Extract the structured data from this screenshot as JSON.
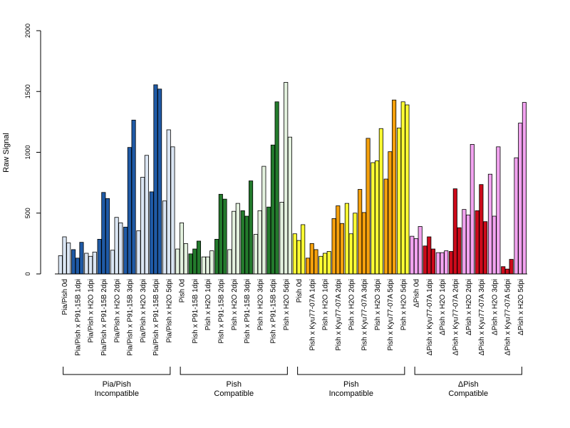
{
  "chart_data": {
    "type": "bar",
    "title": "",
    "xlabel": "",
    "ylabel": "Raw Signal",
    "ylim": [
      0,
      2000
    ],
    "yticks": [
      0,
      500,
      1000,
      1500,
      2000
    ],
    "grid": false,
    "legend": "none",
    "categories": [
      {
        "label": "Pia/Pish 0d",
        "color": "#dbe6f4",
        "values": [
          150,
          305,
          255
        ]
      },
      {
        "label": "Pia/Pish x P91-15B 1dpi",
        "color": "#1f5aa6",
        "values": [
          200,
          130,
          260
        ]
      },
      {
        "label": "Pia/Pish x H2O 1dpi",
        "color": "#dbe6f4",
        "values": [
          170,
          145,
          180
        ]
      },
      {
        "label": "Pia/Pish x P91-15B 2dpi",
        "color": "#1f5aa6",
        "values": [
          285,
          670,
          620
        ]
      },
      {
        "label": "Pia/Pish x H2O 2dpi",
        "color": "#dbe6f4",
        "values": [
          195,
          465,
          420
        ]
      },
      {
        "label": "Pia/Pish x P91-15B 3dpi",
        "color": "#1f5aa6",
        "values": [
          385,
          1040,
          1265
        ]
      },
      {
        "label": "Pia/Pish x H2O 3dpi",
        "color": "#dbe6f4",
        "values": [
          355,
          795,
          975
        ]
      },
      {
        "label": "Pia/Pish x P91-15B 5dpi",
        "color": "#1f5aa6",
        "values": [
          675,
          1555,
          1520
        ]
      },
      {
        "label": "Pia/Pish x H2O 5dpi",
        "color": "#dbe6f4",
        "values": [
          600,
          1185,
          1045
        ]
      },
      {
        "label": "Pish 0d",
        "color": "#e3f1de",
        "values": [
          205,
          420,
          250
        ]
      },
      {
        "label": "Pish x P91-15B 1dpi",
        "color": "#237a2c",
        "values": [
          165,
          205,
          270
        ]
      },
      {
        "label": "Pish x H2O 1dpi",
        "color": "#e3f1de",
        "values": [
          140,
          140,
          190
        ]
      },
      {
        "label": "Pish x P91-15B 2dpi",
        "color": "#237a2c",
        "values": [
          285,
          655,
          615
        ]
      },
      {
        "label": "Pish x H2O 2dpi",
        "color": "#e3f1de",
        "values": [
          200,
          515,
          580
        ]
      },
      {
        "label": "Pish x P91-15B 3dpi",
        "color": "#237a2c",
        "values": [
          520,
          475,
          765
        ]
      },
      {
        "label": "Pish x H2O 3dpi",
        "color": "#e3f1de",
        "values": [
          325,
          520,
          885
        ]
      },
      {
        "label": "Pish x P91-15B 5dpi",
        "color": "#237a2c",
        "values": [
          550,
          1060,
          1415
        ]
      },
      {
        "label": "Pish x H2O 5dpi",
        "color": "#e3f1de",
        "values": [
          590,
          1575,
          1125
        ]
      },
      {
        "label": "Pish 0d",
        "color": "#ffff33",
        "values": [
          330,
          275,
          405
        ]
      },
      {
        "label": "Pish x Kyu77-07A 1dpi",
        "color": "#f5a00c",
        "values": [
          130,
          250,
          200
        ]
      },
      {
        "label": "Pish x H2O 1dpi",
        "color": "#ffff33",
        "values": [
          145,
          170,
          185
        ]
      },
      {
        "label": "Pish x Kyu77-07A 2dpi",
        "color": "#f5a00c",
        "values": [
          455,
          560,
          415
        ]
      },
      {
        "label": "Pish x H2O 2dpi",
        "color": "#ffff33",
        "values": [
          580,
          330,
          500
        ]
      },
      {
        "label": "Pish x Kyu77-07A 3dpi",
        "color": "#f5a00c",
        "values": [
          695,
          505,
          1115
        ]
      },
      {
        "label": "Pish x H2O 3dpi",
        "color": "#ffff33",
        "values": [
          915,
          930,
          1195
        ]
      },
      {
        "label": "Pish x Kyu77-07A 5dpi",
        "color": "#f5a00c",
        "values": [
          780,
          1005,
          1430
        ]
      },
      {
        "label": "Pish x H2O 5dpi",
        "color": "#ffff33",
        "values": [
          1200,
          1415,
          1390
        ]
      },
      {
        "label": "ΔPish 0d",
        "color": "#f2a3f0",
        "values": [
          310,
          290,
          390
        ]
      },
      {
        "label": "ΔPish x Kyu77-07A 1dpi",
        "color": "#cc0a1a",
        "values": [
          230,
          305,
          205
        ]
      },
      {
        "label": "ΔPish x H2O 1dpi",
        "color": "#f2a3f0",
        "values": [
          175,
          175,
          190
        ]
      },
      {
        "label": "ΔPish x Kyu77-07A 2dpi",
        "color": "#cc0a1a",
        "values": [
          185,
          700,
          380
        ]
      },
      {
        "label": "ΔPish x H2O 2dpi",
        "color": "#f2a3f0",
        "values": [
          530,
          485,
          1065
        ]
      },
      {
        "label": "ΔPish x Kyu77-07A 3dpi",
        "color": "#cc0a1a",
        "values": [
          520,
          735,
          430
        ]
      },
      {
        "label": "ΔPish x H2O 3dpi",
        "color": "#f2a3f0",
        "values": [
          820,
          475,
          1045
        ]
      },
      {
        "label": "ΔPish x Kyu77-07A 5dpi",
        "color": "#cc0a1a",
        "values": [
          60,
          40,
          120
        ]
      },
      {
        "label": "ΔPish x H2O 5dpi",
        "color": "#f2a3f0",
        "values": [
          955,
          1240,
          1410
        ]
      }
    ],
    "groups": [
      {
        "line1": "Pia/Pish",
        "line2": "Incompatible",
        "start": 0,
        "end": 8
      },
      {
        "line1": "Pish",
        "line2": "Compatible",
        "start": 9,
        "end": 17
      },
      {
        "line1": "Pish",
        "line2": "Incompatible",
        "start": 18,
        "end": 26
      },
      {
        "line1": "ΔPish",
        "line2": "Compatible",
        "start": 27,
        "end": 35
      }
    ]
  }
}
